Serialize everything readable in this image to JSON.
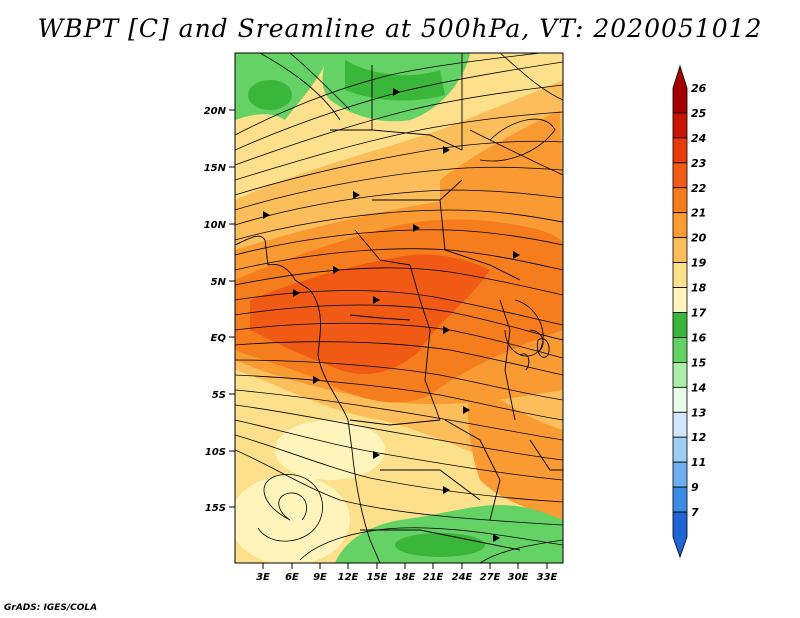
{
  "title": "WBPT [C] and Sreamline at 500hPa, VT: 2020051012",
  "credit": "GrADS: IGES/COLA",
  "map": {
    "variable": "Wet bulb potential temperature",
    "units": "C",
    "level": "500hPa",
    "lat_labels": [
      "20N",
      "15N",
      "10N",
      "5N",
      "EQ",
      "5S",
      "10S",
      "15S"
    ],
    "lon_labels": [
      "3E",
      "6E",
      "9E",
      "12E",
      "15E",
      "18E",
      "21E",
      "24E",
      "27E",
      "30E",
      "33E"
    ]
  },
  "colorbar": {
    "labels": [
      "26",
      "25",
      "24",
      "23",
      "22",
      "21",
      "20",
      "19",
      "18",
      "17",
      "16",
      "15",
      "14",
      "13",
      "12",
      "11",
      "9",
      "7"
    ],
    "colors": [
      "#a50000",
      "#c81400",
      "#e63c0a",
      "#f05a14",
      "#f57d1e",
      "#f99b32",
      "#fbbe5a",
      "#fde08c",
      "#fff5bc",
      "#3ab63a",
      "#64d264",
      "#aaf0aa",
      "#e6fae6",
      "#d2e6fa",
      "#a0cdf5",
      "#6eaff0",
      "#3c8ce6",
      "#1e64d2"
    ]
  }
}
